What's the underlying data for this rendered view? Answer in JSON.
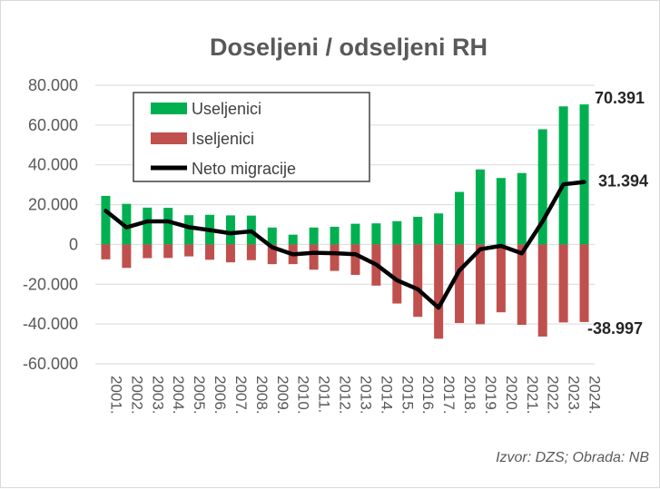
{
  "chart_data": {
    "type": "bar",
    "title": "Doseljeni / odseljeni RH",
    "categories": [
      "2001.",
      "2002.",
      "2003.",
      "2004.",
      "2005.",
      "2006.",
      "2007.",
      "2008.",
      "2009.",
      "2010.",
      "2011.",
      "2012.",
      "2013.",
      "2014.",
      "2015.",
      "2016.",
      "2017.",
      "2018.",
      "2019.",
      "2020.",
      "2021.",
      "2022.",
      "2023.",
      "2024."
    ],
    "series": [
      {
        "name": "Useljenici",
        "type": "bar",
        "color": "#00b050",
        "values": [
          24400,
          20400,
          18500,
          18400,
          14700,
          14900,
          14600,
          14500,
          8500,
          4900,
          8500,
          8900,
          10400,
          10600,
          11700,
          13900,
          15600,
          26400,
          37700,
          33400,
          35900,
          57900,
          69400,
          70391
        ]
      },
      {
        "name": "Iseljenici",
        "type": "bar",
        "color": "#c0504d",
        "values": [
          -7500,
          -11800,
          -6900,
          -6800,
          -6000,
          -7700,
          -9000,
          -7900,
          -9900,
          -9900,
          -12700,
          -13300,
          -15300,
          -20700,
          -29700,
          -36400,
          -47400,
          -39500,
          -40100,
          -34100,
          -40400,
          -46300,
          -39200,
          -38997
        ]
      },
      {
        "name": "Neto migracije",
        "type": "line",
        "color": "#000000",
        "values": [
          16900,
          8600,
          11600,
          11600,
          8700,
          7200,
          5600,
          6600,
          -1400,
          -5000,
          -4200,
          -4400,
          -4900,
          -10100,
          -18000,
          -22500,
          -31800,
          -13100,
          -2400,
          -700,
          -4500,
          11600,
          30200,
          31394
        ]
      }
    ],
    "yticks": [
      "80.000",
      "60.000",
      "40.000",
      "20.000",
      "0",
      "-20.000",
      "-40.000",
      "-60.000"
    ],
    "ylim": [
      -60000,
      80000
    ],
    "xlabel": "",
    "ylabel": "",
    "annotations": [
      "70.391",
      "31.394",
      "-38.997"
    ],
    "grid": true,
    "legend_position": "top-left"
  },
  "source_note": "Izvor: DZS; Obrada: NB"
}
